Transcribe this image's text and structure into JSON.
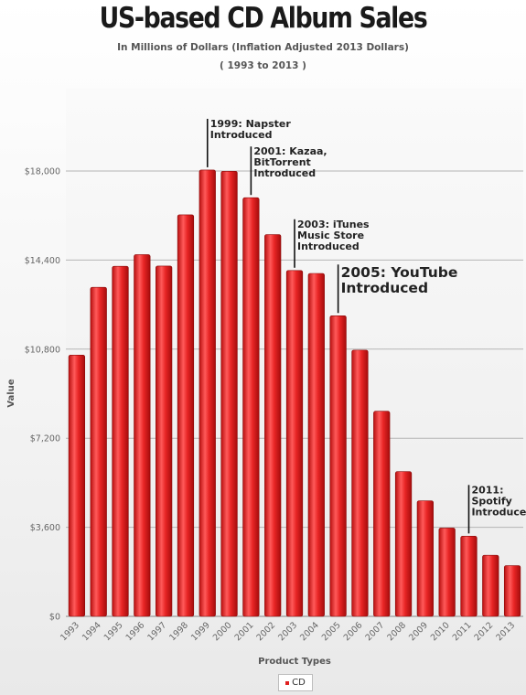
{
  "header": {
    "title": "US-based CD Album Sales",
    "subtitle": "In Millions of Dollars (Inflation Adjusted 2013 Dollars)",
    "range": "( 1993 to 2013 )"
  },
  "legend": {
    "label": "CD",
    "color": "#e02020"
  },
  "chart_data": {
    "type": "bar",
    "title": "US-based CD Album Sales",
    "xlabel": "Product Types",
    "ylabel": "Value",
    "ylim": [
      0,
      18000
    ],
    "yticks": [
      "$0",
      "$3,600",
      "$7,200",
      "$10,800",
      "$14,400",
      "$18,000"
    ],
    "grid": true,
    "legend_position": "bottom",
    "categories": [
      "1993",
      "1994",
      "1995",
      "1996",
      "1997",
      "1998",
      "1999",
      "2000",
      "2001",
      "2002",
      "2003",
      "2004",
      "2005",
      "2006",
      "2007",
      "2008",
      "2009",
      "2010",
      "2011",
      "2012",
      "2013"
    ],
    "series": [
      {
        "name": "CD",
        "color": "#e02020",
        "values": [
          10560,
          13300,
          14150,
          14620,
          14160,
          16230,
          18040,
          17990,
          16920,
          15430,
          13980,
          13860,
          12150,
          10760,
          8290,
          5850,
          4670,
          3570,
          3240,
          2470,
          2050
        ]
      }
    ],
    "annotations": [
      {
        "category": "1999",
        "lines": [
          "1999: Napster",
          "Introduced"
        ],
        "big": false
      },
      {
        "category": "2001",
        "lines": [
          "2001: Kazaa,",
          "BitTorrent",
          "Introduced"
        ],
        "big": false
      },
      {
        "category": "2003",
        "lines": [
          "2003: iTunes",
          "Music Store",
          "Introduced"
        ],
        "big": false
      },
      {
        "category": "2005",
        "lines": [
          "2005: YouTube",
          "Introduced"
        ],
        "big": true
      },
      {
        "category": "2011",
        "lines": [
          "2011:",
          "Spotify",
          "Introduced"
        ],
        "big": false
      }
    ]
  }
}
